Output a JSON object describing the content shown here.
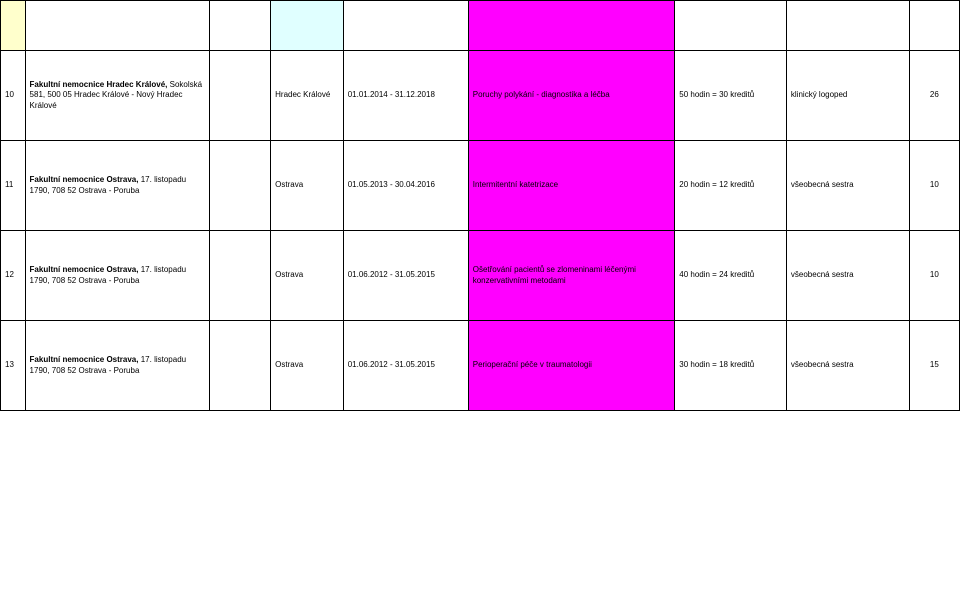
{
  "colors": {
    "magenta": "#ff00ff",
    "cyan": "#e0ffff",
    "yellow": "#ffffcc",
    "border": "#000000",
    "background": "#ffffff",
    "text": "#000000"
  },
  "header": {
    "num_bg": "yellow",
    "city_bg": "cyan",
    "topic_bg": "magenta"
  },
  "rows": [
    {
      "num": "10",
      "inst_bold": "Fakultní nemocnice Hradec Králové,",
      "inst_rest": "Sokolská 581, 500 05 Hradec Králové - Nový Hradec Králové",
      "city": "Hradec Králové",
      "dates": "01.01.2014 - 31.12.2018",
      "topic": "Poruchy polykání - diagnostika a léčba",
      "topic_bg": "magenta",
      "hours": "50 hodin = 30 kreditů",
      "prof": "klinický logoped",
      "credits": "26"
    },
    {
      "num": "11",
      "inst_bold": "Fakultní nemocnice Ostrava,",
      "inst_rest": "17. listopadu 1790, 708 52 Ostrava - Poruba",
      "city": "Ostrava",
      "dates": "01.05.2013 - 30.04.2016",
      "topic": "Intermitentní katetrizace",
      "topic_bg": "magenta",
      "hours": "20 hodin = 12 kreditů",
      "prof": "všeobecná sestra",
      "credits": "10"
    },
    {
      "num": "12",
      "inst_bold": "Fakultní nemocnice Ostrava,",
      "inst_rest": "17. listopadu 1790, 708 52 Ostrava - Poruba",
      "city": "Ostrava",
      "dates": "01.06.2012 - 31.05.2015",
      "topic": "Ošetřování pacientů se zlomeninami léčenými konzervativními metodami",
      "topic_bg": "magenta",
      "hours": "40 hodin = 24 kreditů",
      "prof": "všeobecná sestra",
      "credits": "10"
    },
    {
      "num": "13",
      "inst_bold": "Fakultní nemocnice Ostrava,",
      "inst_rest": "17. listopadu 1790, 708 52 Ostrava - Poruba",
      "city": "Ostrava",
      "dates": "01.06.2012 - 31.05.2015",
      "topic": "Perioperační péče v traumatologii",
      "topic_bg": "magenta",
      "hours": "30 hodin = 18 kreditů",
      "prof": "všeobecná sestra",
      "credits": "15"
    }
  ]
}
